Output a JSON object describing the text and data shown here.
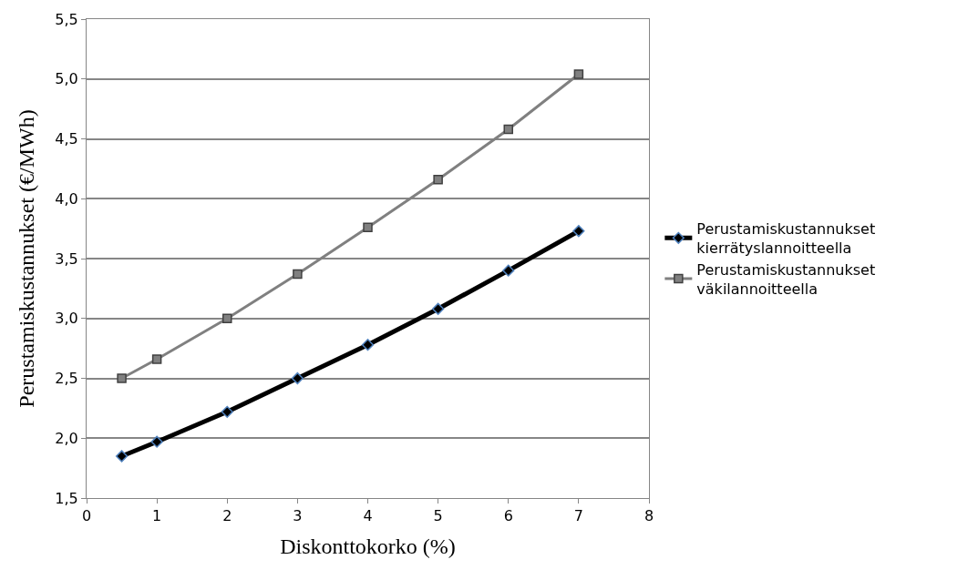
{
  "chart_data": {
    "type": "line",
    "xlabel": "Diskonttokorko (%)",
    "ylabel": "Perustamiskustannukset (€/MWh)",
    "x": [
      0.5,
      1,
      2,
      3,
      4,
      5,
      6,
      7
    ],
    "series": [
      {
        "name": "Perustamiskustannukset kierrätyslannoitteella",
        "color": "#000000",
        "marker": "diamond",
        "values": [
          1.85,
          1.97,
          2.22,
          2.5,
          2.78,
          3.08,
          3.4,
          3.73
        ]
      },
      {
        "name": "Perustamiskustannukset väkilannoitteella",
        "color": "#808080",
        "marker": "square",
        "values": [
          2.5,
          2.66,
          3.0,
          3.37,
          3.76,
          4.16,
          4.58,
          5.04
        ]
      }
    ],
    "xlim": [
      0,
      8
    ],
    "xticks": [
      0,
      1,
      2,
      3,
      4,
      5,
      6,
      7,
      8
    ],
    "ylim": [
      1.5,
      5.5
    ],
    "yticks": [
      {
        "value": 1.5,
        "label": "1,5"
      },
      {
        "value": 2.0,
        "label": "2,0"
      },
      {
        "value": 2.5,
        "label": "2,5"
      },
      {
        "value": 3.0,
        "label": "3,0"
      },
      {
        "value": 3.5,
        "label": "3,5"
      },
      {
        "value": 4.0,
        "label": "4,0"
      },
      {
        "value": 4.5,
        "label": "4,5"
      },
      {
        "value": 5.0,
        "label": "5,0"
      },
      {
        "value": 5.5,
        "label": "5,5"
      }
    ],
    "grid": "y",
    "legend": "right",
    "line_style": "solid"
  }
}
